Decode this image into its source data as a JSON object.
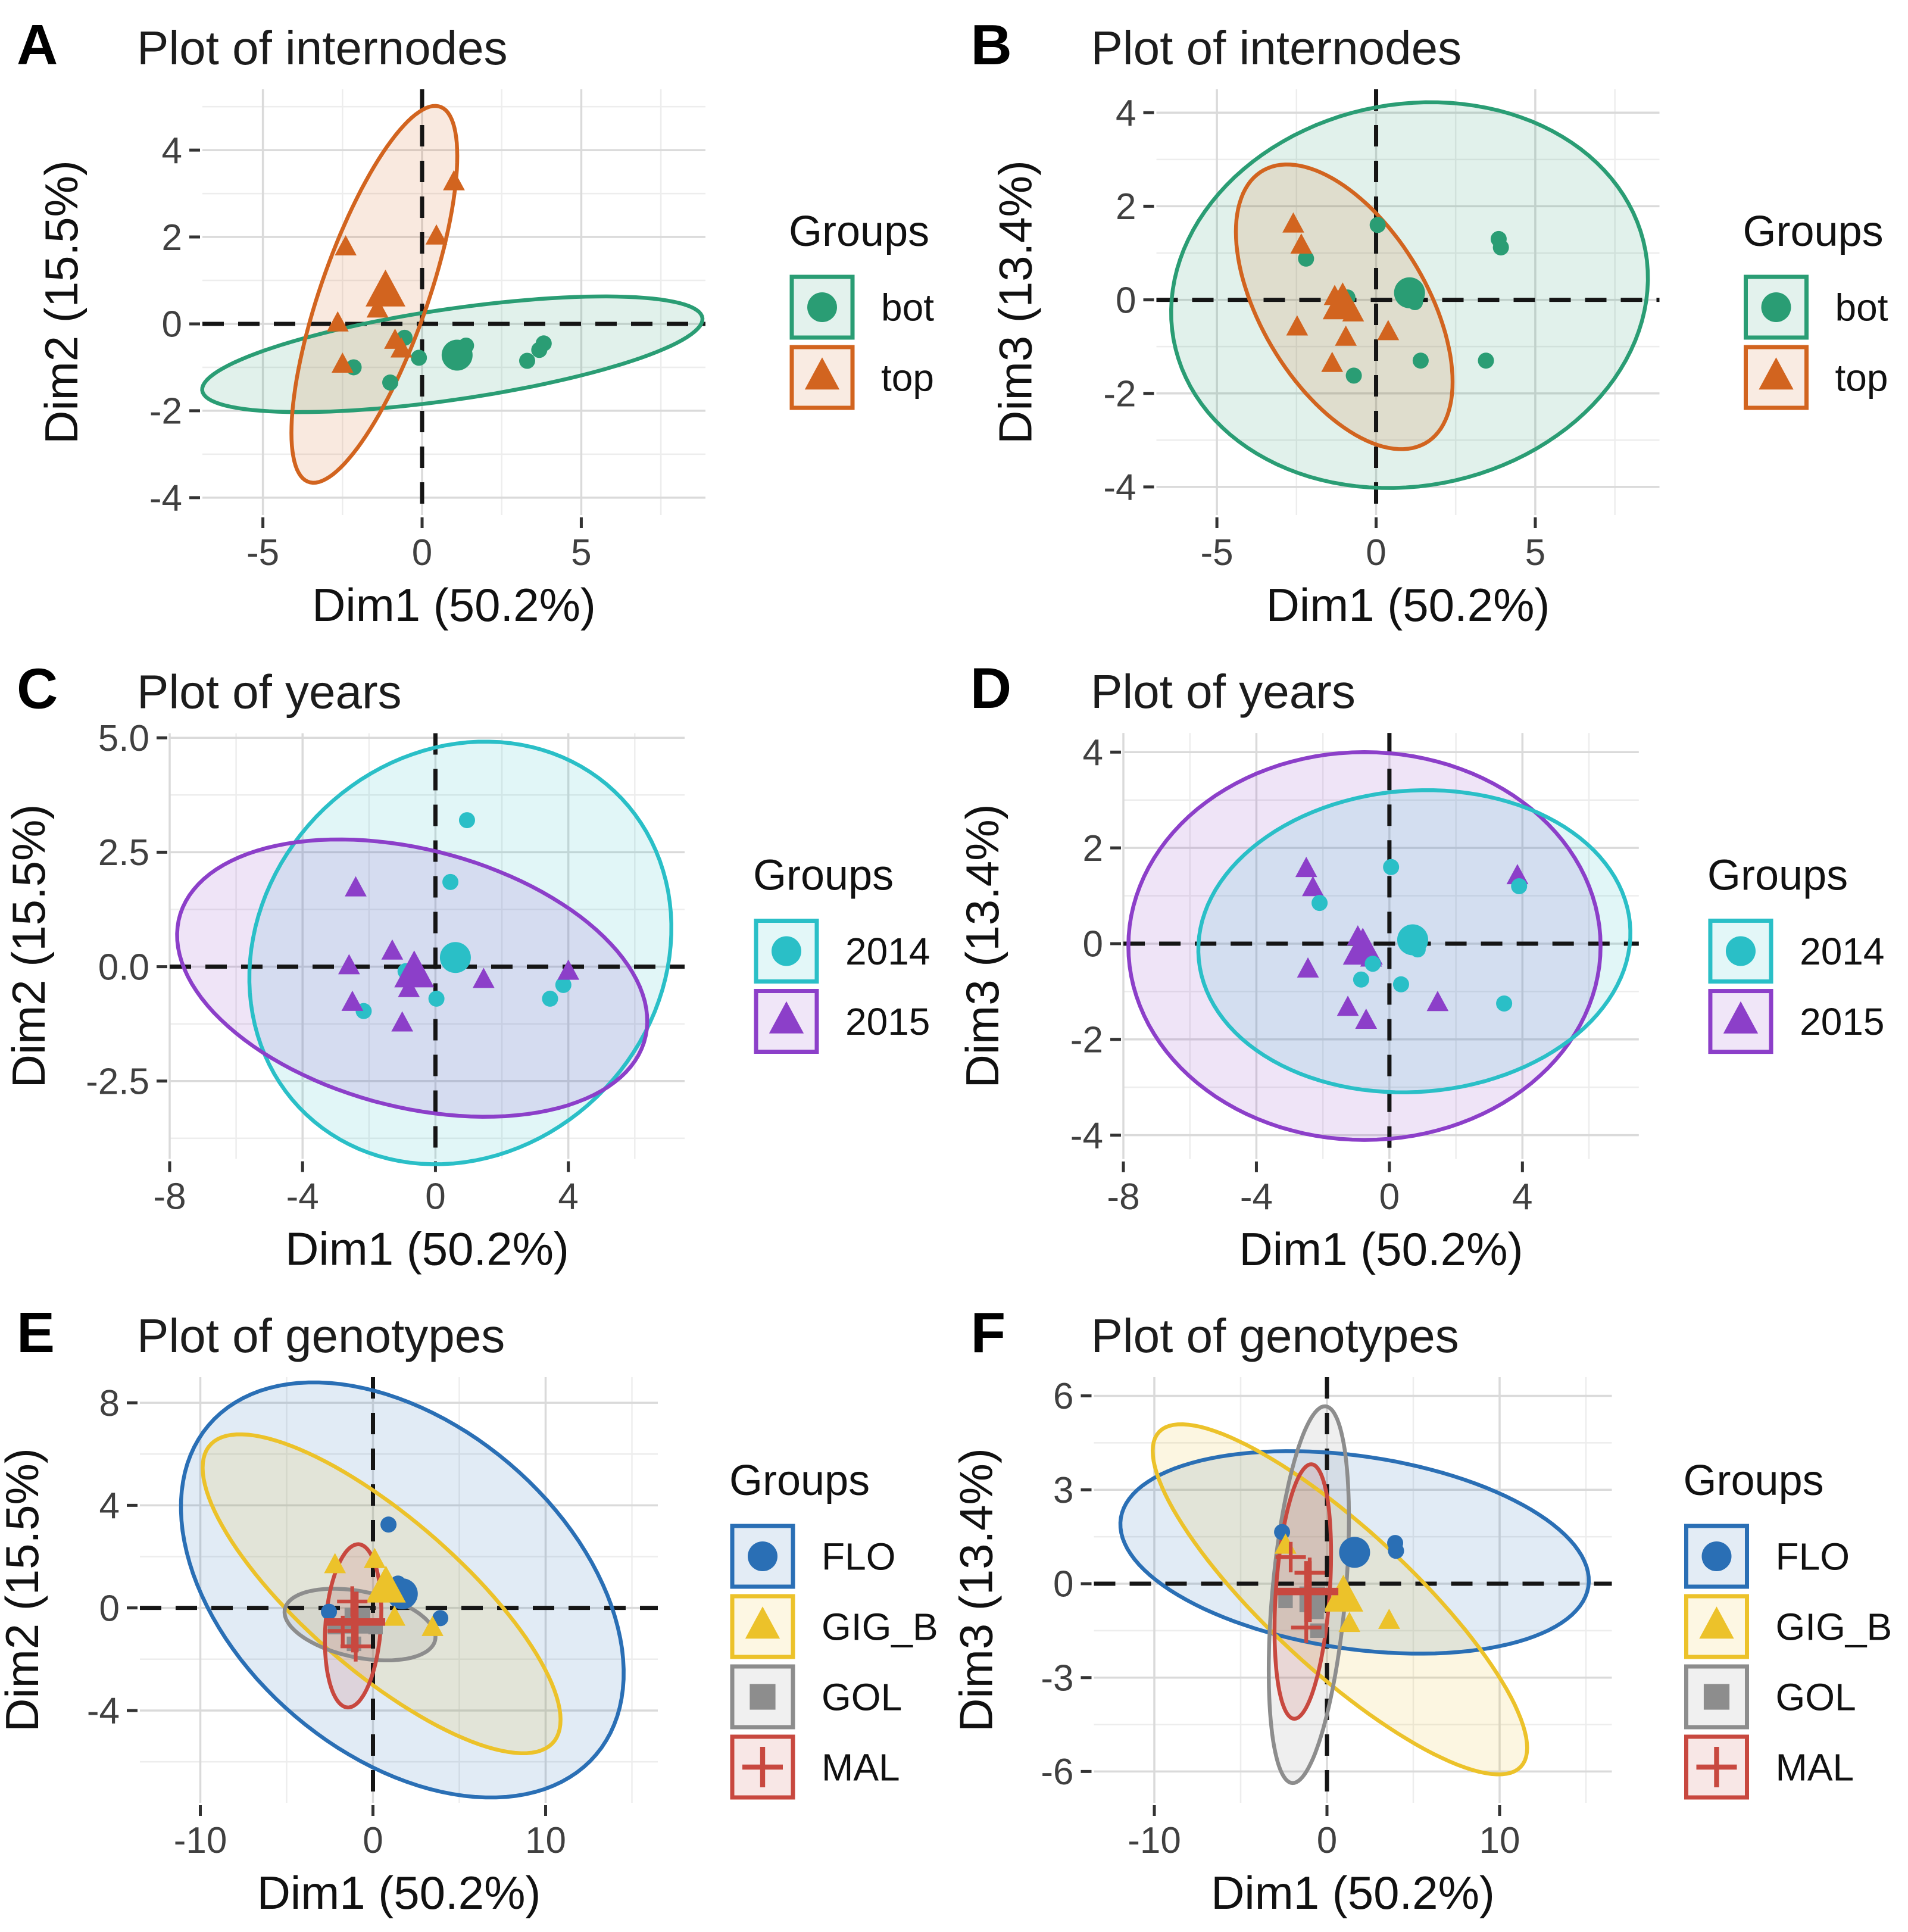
{
  "figure_name": "PCA group plots",
  "legend_title": "Groups",
  "colors": {
    "bot": "#2a9d74",
    "top": "#d2641f",
    "y2014": "#2abfc7",
    "y2015": "#8c3fc9",
    "FLO": "#2a6fb5",
    "GIG_B": "#ecc22a",
    "GOL": "#8d8d8d",
    "MAL": "#c8483f",
    "grid_major": "#dadada",
    "grid_minor": "#ededed",
    "zero_line": "#151515",
    "tick": "#333333"
  },
  "chart_data": [
    {
      "id": "A",
      "type": "scatter",
      "title": "Plot of internodes",
      "xlabel": "Dim1 (50.2%)",
      "ylabel": "Dim2 (15.5%)",
      "legend_title": "Groups",
      "xlim": [
        -6.9,
        8.9
      ],
      "ylim": [
        -4.4,
        5.4
      ],
      "xticks": [
        -5,
        0,
        5
      ],
      "xtick_labels": [
        "-5",
        "0",
        "5"
      ],
      "yticks": [
        -4,
        -2,
        0,
        2,
        4
      ],
      "ytick_labels": [
        "-4",
        "-2",
        "0",
        "2",
        "4"
      ],
      "series": [
        {
          "name": "bot",
          "marker": "circle",
          "color": "#2a9d74",
          "ellipse": {
            "cx": 0.95,
            "cy": -0.7,
            "rx": 7.9,
            "ry": 1.05,
            "angle": 6
          },
          "points": [
            [
              -2.15,
              -1.0
            ],
            [
              -1.0,
              -1.35
            ],
            [
              -0.55,
              -0.32
            ],
            [
              -0.1,
              -0.78
            ],
            [
              1.38,
              -0.5
            ],
            [
              3.3,
              -0.85
            ],
            [
              3.68,
              -0.6
            ],
            [
              3.82,
              -0.45
            ]
          ],
          "centroid": [
            1.1,
            -0.72
          ]
        },
        {
          "name": "top",
          "marker": "triangle",
          "color": "#d2641f",
          "ellipse": {
            "cx": -1.5,
            "cy": 0.68,
            "rx": 4.8,
            "ry": 1.6,
            "angle": 63
          },
          "points": [
            [
              1.0,
              3.25
            ],
            [
              0.45,
              2.0
            ],
            [
              -2.4,
              1.75
            ],
            [
              -1.4,
              0.32
            ],
            [
              -2.65,
              0.0
            ],
            [
              -0.85,
              -0.4
            ],
            [
              -0.65,
              -0.6
            ],
            [
              -2.5,
              -0.95
            ]
          ],
          "centroid": [
            -1.15,
            0.72
          ]
        }
      ]
    },
    {
      "id": "B",
      "type": "scatter",
      "title": "Plot of internodes",
      "xlabel": "Dim1 (50.2%)",
      "ylabel": "Dim3 (13.4%)",
      "legend_title": "Groups",
      "xlim": [
        -6.9,
        8.9
      ],
      "ylim": [
        -4.6,
        4.5
      ],
      "xticks": [
        -5,
        0,
        5
      ],
      "xtick_labels": [
        "-5",
        "0",
        "5"
      ],
      "yticks": [
        -4,
        -2,
        0,
        2,
        4
      ],
      "ytick_labels": [
        "-4",
        "-2",
        "0",
        "2",
        "4"
      ],
      "series": [
        {
          "name": "bot",
          "marker": "circle",
          "color": "#2a9d74",
          "ellipse": {
            "cx": 1.05,
            "cy": 0.1,
            "rx": 7.5,
            "ry": 4.1,
            "angle": 4
          },
          "points": [
            [
              -2.2,
              0.88
            ],
            [
              0.05,
              1.6
            ],
            [
              3.85,
              1.3
            ],
            [
              3.92,
              1.12
            ],
            [
              1.22,
              -0.05
            ],
            [
              1.4,
              -1.3
            ],
            [
              3.45,
              -1.3
            ],
            [
              -0.7,
              -1.62
            ],
            [
              -0.9,
              0.05
            ]
          ],
          "centroid": [
            1.05,
            0.15
          ]
        },
        {
          "name": "top",
          "marker": "triangle",
          "color": "#d2641f",
          "ellipse": {
            "cx": -1.0,
            "cy": -0.15,
            "rx": 4.0,
            "ry": 2.2,
            "angle": -39
          },
          "points": [
            [
              -2.6,
              1.6
            ],
            [
              -2.35,
              1.15
            ],
            [
              -1.3,
              0.05
            ],
            [
              -0.72,
              -0.3
            ],
            [
              -2.48,
              -0.6
            ],
            [
              -0.95,
              -0.82
            ],
            [
              0.38,
              -0.7
            ],
            [
              -1.38,
              -1.38
            ]
          ],
          "centroid": [
            -1.05,
            -0.12
          ]
        }
      ]
    },
    {
      "id": "C",
      "type": "scatter",
      "title": "Plot of years",
      "xlabel": "Dim1 (50.2%)",
      "ylabel": "Dim2 (15.5%)",
      "legend_title": "Groups",
      "xlim": [
        -8.0,
        7.5
      ],
      "ylim": [
        -4.2,
        5.1
      ],
      "xticks": [
        -8,
        -4,
        0,
        4
      ],
      "xtick_labels": [
        "-8",
        "-4",
        "0",
        "4"
      ],
      "yticks": [
        -2.5,
        0,
        2.5,
        5
      ],
      "ytick_labels": [
        "-2.5",
        "0.0",
        "2.5",
        "5.0"
      ],
      "series": [
        {
          "name": "2014",
          "marker": "circle",
          "color": "#2abfc7",
          "ellipse": {
            "cx": 0.75,
            "cy": 0.3,
            "rx": 6.4,
            "ry": 4.55,
            "angle": 10
          },
          "points": [
            [
              0.95,
              3.2
            ],
            [
              0.45,
              1.85
            ],
            [
              -0.9,
              -0.1
            ],
            [
              0.03,
              -0.7
            ],
            [
              -2.16,
              -0.97
            ],
            [
              3.45,
              -0.7
            ],
            [
              3.85,
              -0.4
            ]
          ],
          "centroid": [
            0.6,
            0.2
          ]
        },
        {
          "name": "2015",
          "marker": "triangle",
          "color": "#8c3fc9",
          "ellipse": {
            "cx": -0.7,
            "cy": -0.25,
            "rx": 7.15,
            "ry": 2.85,
            "angle": -9
          },
          "points": [
            [
              -2.4,
              1.7
            ],
            [
              -1.3,
              0.32
            ],
            [
              -2.6,
              0.0
            ],
            [
              -0.8,
              -0.5
            ],
            [
              1.45,
              -0.3
            ],
            [
              -2.5,
              -0.8
            ],
            [
              -1.0,
              -1.25
            ],
            [
              4.0,
              -0.12
            ]
          ],
          "centroid": [
            -0.64,
            -0.15
          ]
        }
      ]
    },
    {
      "id": "D",
      "type": "scatter",
      "title": "Plot of years",
      "xlabel": "Dim1 (50.2%)",
      "ylabel": "Dim3 (13.4%)",
      "legend_title": "Groups",
      "xlim": [
        -8.0,
        7.5
      ],
      "ylim": [
        -4.5,
        4.4
      ],
      "xticks": [
        -8,
        -4,
        0,
        4
      ],
      "xtick_labels": [
        "-8",
        "-4",
        "0",
        "4"
      ],
      "yticks": [
        -4,
        -2,
        0,
        2,
        4
      ],
      "ytick_labels": [
        "-4",
        "-2",
        "0",
        "2",
        "4"
      ],
      "series": [
        {
          "name": "2015",
          "marker": "triangle",
          "color": "#8c3fc9",
          "ellipse": {
            "cx": -0.75,
            "cy": -0.05,
            "rx": 7.1,
            "ry": 4.05,
            "angle": 0
          },
          "points": [
            [
              -2.5,
              1.55
            ],
            [
              -2.3,
              1.15
            ],
            [
              3.85,
              1.4
            ],
            [
              -0.95,
              0.12
            ],
            [
              -0.55,
              -0.32
            ],
            [
              -2.45,
              -0.55
            ],
            [
              -1.25,
              -1.35
            ],
            [
              -0.7,
              -1.62
            ],
            [
              1.45,
              -1.25
            ]
          ],
          "centroid": [
            -0.8,
            -0.15
          ]
        },
        {
          "name": "2014",
          "marker": "circle",
          "color": "#2abfc7",
          "ellipse": {
            "cx": 0.75,
            "cy": 0.05,
            "rx": 6.5,
            "ry": 3.15,
            "angle": 2
          },
          "points": [
            [
              0.05,
              1.6
            ],
            [
              -2.1,
              0.85
            ],
            [
              3.9,
              1.2
            ],
            [
              0.85,
              -0.12
            ],
            [
              -0.5,
              -0.42
            ],
            [
              -0.85,
              -0.75
            ],
            [
              0.35,
              -0.85
            ],
            [
              3.45,
              -1.25
            ]
          ],
          "centroid": [
            0.7,
            0.08
          ]
        }
      ]
    },
    {
      "id": "E",
      "type": "scatter",
      "title": "Plot of genotypes",
      "xlabel": "Dim1 (50.2%)",
      "ylabel": "Dim2 (15.5%)",
      "legend_title": "Groups",
      "xlim": [
        -13.5,
        16.5
      ],
      "ylim": [
        -7.6,
        9.0
      ],
      "xticks": [
        -10,
        0,
        10
      ],
      "xtick_labels": [
        "-10",
        "0",
        "10"
      ],
      "yticks": [
        -4,
        0,
        4,
        8
      ],
      "ytick_labels": [
        "-4",
        "0",
        "4",
        "8"
      ],
      "series": [
        {
          "name": "FLO",
          "marker": "circle",
          "color": "#2a6fb5",
          "ellipse": {
            "cx": 1.7,
            "cy": 0.7,
            "rx": 13.4,
            "ry": 7.1,
            "angle": -20
          },
          "points": [
            [
              0.9,
              3.25
            ],
            [
              1.45,
              0.95
            ],
            [
              -2.55,
              -0.15
            ],
            [
              3.9,
              -0.4
            ]
          ],
          "centroid": [
            1.7,
            0.55
          ]
        },
        {
          "name": "GIG_B",
          "marker": "triangle",
          "color": "#ecc22a",
          "ellipse": {
            "cx": 0.5,
            "cy": 0.55,
            "rx": 11.6,
            "ry": 3.4,
            "angle": -28
          },
          "points": [
            [
              -2.2,
              1.65
            ],
            [
              0.1,
              1.85
            ],
            [
              1.25,
              -0.4
            ],
            [
              3.45,
              -0.8
            ]
          ],
          "centroid": [
            0.75,
            0.75
          ]
        },
        {
          "name": "GOL",
          "marker": "square",
          "color": "#8d8d8d",
          "ellipse": {
            "cx": -0.75,
            "cy": -0.65,
            "rx": 4.4,
            "ry": 1.3,
            "angle": -7
          },
          "points": [
            [
              -2.2,
              -0.75
            ],
            [
              0.15,
              -0.75
            ],
            [
              -1.1,
              -1.4
            ]
          ],
          "centroid": [
            -0.9,
            -0.5
          ]
        },
        {
          "name": "MAL",
          "marker": "plus",
          "color": "#c8483f",
          "ellipse": {
            "cx": -1.15,
            "cy": -0.7,
            "rx": 3.2,
            "ry": 1.6,
            "angle": 83
          },
          "points": [
            [
              -1.2,
              0.25
            ],
            [
              -1.75,
              -0.9
            ],
            [
              -1.0,
              -1.5
            ]
          ],
          "centroid": [
            -1.05,
            -0.55
          ]
        }
      ]
    },
    {
      "id": "F",
      "type": "scatter",
      "title": "Plot of genotypes",
      "xlabel": "Dim1 (50.2%)",
      "ylabel": "Dim3 (13.4%)",
      "legend_title": "Groups",
      "xlim": [
        -13.5,
        16.5
      ],
      "ylim": [
        -7.0,
        6.6
      ],
      "xticks": [
        -10,
        0,
        10
      ],
      "xtick_labels": [
        "-10",
        "0",
        "10"
      ],
      "yticks": [
        -6,
        -3,
        0,
        3,
        6
      ],
      "ytick_labels": [
        "-6",
        "-3",
        "0",
        "3",
        "6"
      ],
      "series": [
        {
          "name": "FLO",
          "marker": "circle",
          "color": "#2a6fb5",
          "ellipse": {
            "cx": 1.6,
            "cy": 1.0,
            "rx": 13.6,
            "ry": 3.1,
            "angle": -4
          },
          "points": [
            [
              -2.6,
              1.65
            ],
            [
              1.8,
              0.85
            ],
            [
              3.95,
              1.3
            ],
            [
              4.0,
              1.05
            ]
          ],
          "centroid": [
            1.6,
            1.0
          ]
        },
        {
          "name": "GIG_B",
          "marker": "triangle",
          "color": "#ecc22a",
          "ellipse": {
            "cx": 0.75,
            "cy": -0.5,
            "rx": 11.9,
            "ry": 2.7,
            "angle": -25
          },
          "points": [
            [
              -2.4,
              1.2
            ],
            [
              1.3,
              -1.3
            ],
            [
              3.6,
              -1.2
            ]
          ],
          "centroid": [
            0.95,
            -0.45
          ]
        },
        {
          "name": "GOL",
          "marker": "square",
          "color": "#8d8d8d",
          "ellipse": {
            "cx": -1.05,
            "cy": -0.35,
            "rx": 6.1,
            "ry": 2.1,
            "angle": 80
          },
          "points": [
            [
              -2.4,
              -0.55
            ],
            [
              -0.6,
              -0.9
            ],
            [
              -0.55,
              -1.5
            ]
          ],
          "centroid": [
            -0.85,
            -0.5
          ]
        },
        {
          "name": "MAL",
          "marker": "plus",
          "color": "#c8483f",
          "ellipse": {
            "cx": -1.4,
            "cy": -0.25,
            "rx": 4.1,
            "ry": 1.55,
            "angle": 82
          },
          "points": [
            [
              -2.1,
              0.85
            ],
            [
              -1.0,
              0.35
            ],
            [
              -1.2,
              -1.4
            ]
          ],
          "centroid": [
            -1.1,
            -0.25
          ]
        }
      ]
    }
  ]
}
